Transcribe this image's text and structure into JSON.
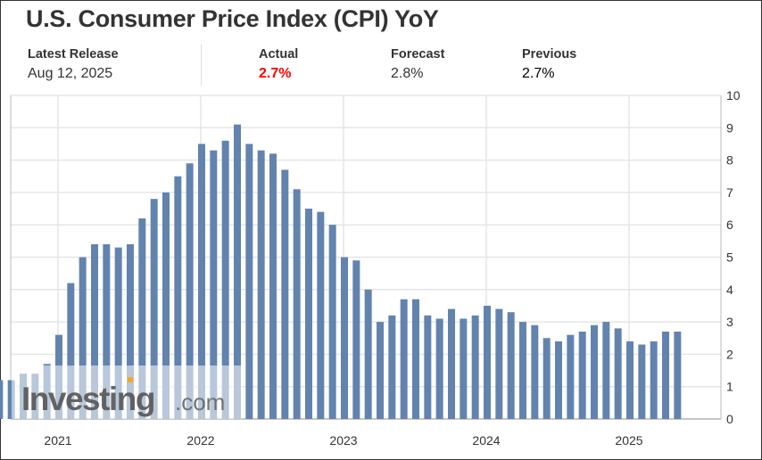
{
  "header": {
    "title": "U.S. Consumer Price Index (CPI) YoY",
    "latest_release_label": "Latest Release",
    "latest_release_date": "Aug 12, 2025",
    "actual_label": "Actual",
    "actual_value": "2.7%",
    "forecast_label": "Forecast",
    "forecast_value": "2.8%",
    "previous_label": "Previous",
    "previous_value": "2.7%"
  },
  "colors": {
    "bar": "#6283ae",
    "actual": "#ff0000",
    "grid": "#e6e6e6"
  },
  "watermark": {
    "text": "Investing",
    "suffix": ".com"
  },
  "chart_data": {
    "type": "bar",
    "title": "U.S. Consumer Price Index (CPI) YoY",
    "xlabel": "",
    "ylabel": "",
    "ylim": [
      0,
      10
    ],
    "yticks": [
      "0",
      "1",
      "2",
      "3",
      "4",
      "5",
      "6",
      "7",
      "8",
      "9",
      "10"
    ],
    "xticks": [
      "2021",
      "2022",
      "2023",
      "2024",
      "2025"
    ],
    "first_bar_offset_months_before_2021": 5,
    "values": [
      1.3,
      1.4,
      1.2,
      1.2,
      1.4,
      1.4,
      1.7,
      2.6,
      4.2,
      5.0,
      5.4,
      5.4,
      5.3,
      5.4,
      6.2,
      6.8,
      7.0,
      7.5,
      7.9,
      8.5,
      8.3,
      8.6,
      9.1,
      8.5,
      8.3,
      8.2,
      7.7,
      7.1,
      6.5,
      6.4,
      6.0,
      5.0,
      4.9,
      4.0,
      3.0,
      3.2,
      3.7,
      3.7,
      3.2,
      3.1,
      3.4,
      3.1,
      3.2,
      3.5,
      3.4,
      3.3,
      3.0,
      2.9,
      2.5,
      2.4,
      2.6,
      2.7,
      2.9,
      3.0,
      2.8,
      2.4,
      2.3,
      2.4,
      2.7,
      2.7
    ],
    "grid": true,
    "legend": "none"
  }
}
